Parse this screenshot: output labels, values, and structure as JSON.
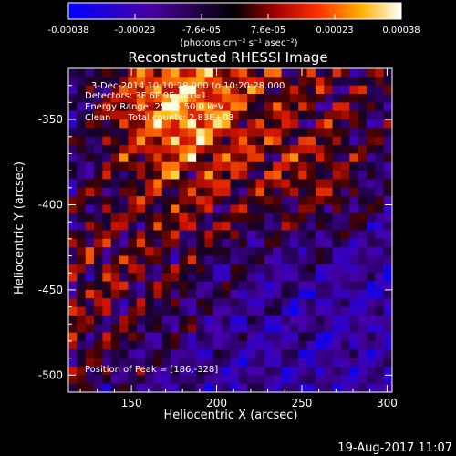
{
  "chart_data": {
    "type": "heatmap",
    "title": "Reconstructed RHESSI Image",
    "colorbar": {
      "ticks": [
        "-0.00038",
        "-0.00023",
        "-7.6e-05",
        "7.6e-05",
        "0.00023",
        "0.00038"
      ],
      "range": [
        -0.00038,
        0.00038
      ],
      "unit_label": "(photons cm⁻² s⁻¹ asec⁻²)"
    },
    "xlabel": "Heliocentric X (arcsec)",
    "ylabel": "Heliocentric Y (arcsec)",
    "xlim": [
      113,
      303
    ],
    "ylim": [
      -510,
      -320
    ],
    "xticks": [
      150,
      200,
      250,
      300
    ],
    "yticks": [
      -350,
      -400,
      -450,
      -500
    ],
    "annotations": [
      "3-Dec-2014 10:10:28.000 to 10:20:28.000",
      "Detectors: 3F 6F 9F; Att=1",
      "Energy Range: 25.0 - 50.0 keV",
      "Clean      Total counts: 2.83E+03",
      "Position of Peak = [186,-328]"
    ],
    "peak": [
      186,
      -328
    ],
    "colors": {
      "min": "#0000ff",
      "mid": "#000000",
      "max": "#ffffff"
    }
  },
  "footer": {
    "timestamp": "19-Aug-2017 11:07"
  }
}
